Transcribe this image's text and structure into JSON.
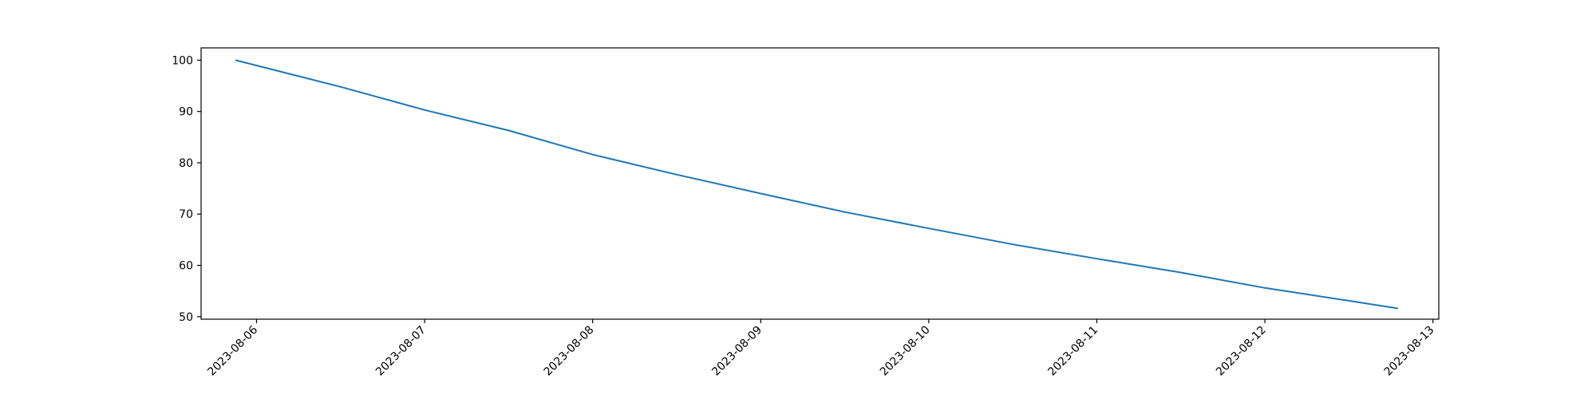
{
  "chart_data": {
    "type": "line",
    "title": "",
    "xlabel": "",
    "ylabel": "",
    "x_axis": "date",
    "xlim": [
      "2023-08-05T16:05:00",
      "2023-08-13T00:50:00"
    ],
    "ylim": [
      49.5,
      102.4
    ],
    "grid": false,
    "legend": "none",
    "x_ticks": [
      "2023-08-06",
      "2023-08-07",
      "2023-08-08",
      "2023-08-09",
      "2023-08-10",
      "2023-08-11",
      "2023-08-12",
      "2023-08-13"
    ],
    "y_ticks": [
      50,
      60,
      70,
      80,
      90,
      100
    ],
    "series": [
      {
        "color": "#1f77b4",
        "x": [
          "2023-08-05T21:00:00",
          "2023-08-06T12:00:00",
          "2023-08-07T00:00:00",
          "2023-08-07T12:00:00",
          "2023-08-08T00:00:00",
          "2023-08-08T12:00:00",
          "2023-08-09T00:00:00",
          "2023-08-09T12:00:00",
          "2023-08-10T00:00:00",
          "2023-08-10T12:00:00",
          "2023-08-11T00:00:00",
          "2023-08-11T12:00:00",
          "2023-08-12T00:00:00",
          "2023-08-12T12:00:00",
          "2023-08-12T19:00:00"
        ],
        "y": [
          100.0,
          94.8,
          90.3,
          86.3,
          81.6,
          77.7,
          74.0,
          70.4,
          67.2,
          64.1,
          61.3,
          58.6,
          55.6,
          53.1,
          51.6
        ]
      }
    ]
  }
}
